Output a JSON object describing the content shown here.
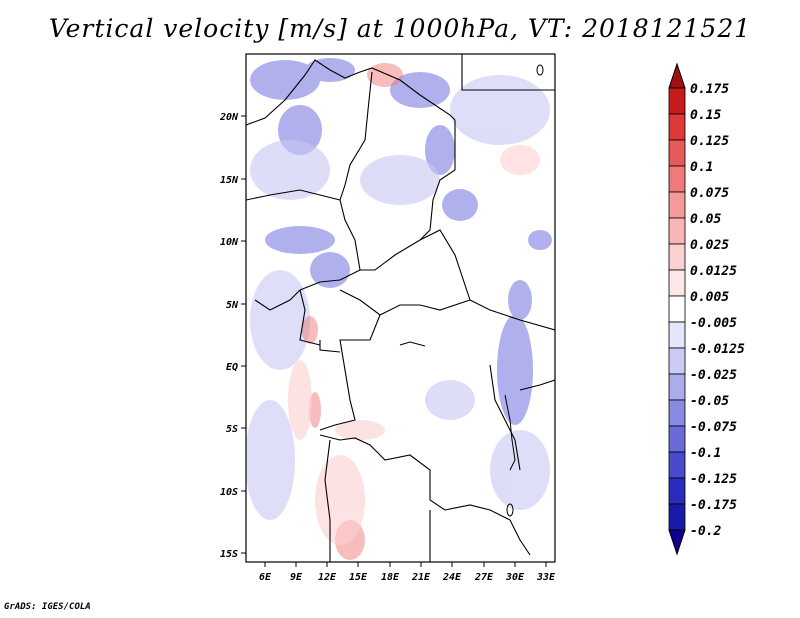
{
  "title": "Vertical velocity [m/s] at 1000hPa, VT: 2018121521",
  "footer": "GrADS: IGES/COLA",
  "map": {
    "lon_labels": [
      "6E",
      "9E",
      "12E",
      "15E",
      "18E",
      "21E",
      "24E",
      "27E",
      "30E",
      "33E"
    ],
    "lat_labels": [
      "20N",
      "15N",
      "10N",
      "5N",
      "EQ",
      "5S",
      "10S",
      "15S"
    ]
  },
  "colorbar": {
    "labels": [
      "0.175",
      "0.15",
      "0.125",
      "0.1",
      "0.075",
      "0.05",
      "0.025",
      "0.0125",
      "0.005",
      "-0.005",
      "-0.0125",
      "-0.025",
      "-0.05",
      "-0.075",
      "-0.1",
      "-0.125",
      "-0.175",
      "-0.2"
    ],
    "colors": [
      "#a01010",
      "#c81c1c",
      "#dc3a3a",
      "#e85a5a",
      "#f07a7a",
      "#f49a9a",
      "#f8b6b6",
      "#fbd0d0",
      "#fde6e6",
      "#ffffff",
      "#e6e6fa",
      "#cbcbf5",
      "#ababee",
      "#8a8ae3",
      "#6a6ad8",
      "#4a4acc",
      "#2c2cbc",
      "#1a1aa8",
      "#100090"
    ]
  }
}
